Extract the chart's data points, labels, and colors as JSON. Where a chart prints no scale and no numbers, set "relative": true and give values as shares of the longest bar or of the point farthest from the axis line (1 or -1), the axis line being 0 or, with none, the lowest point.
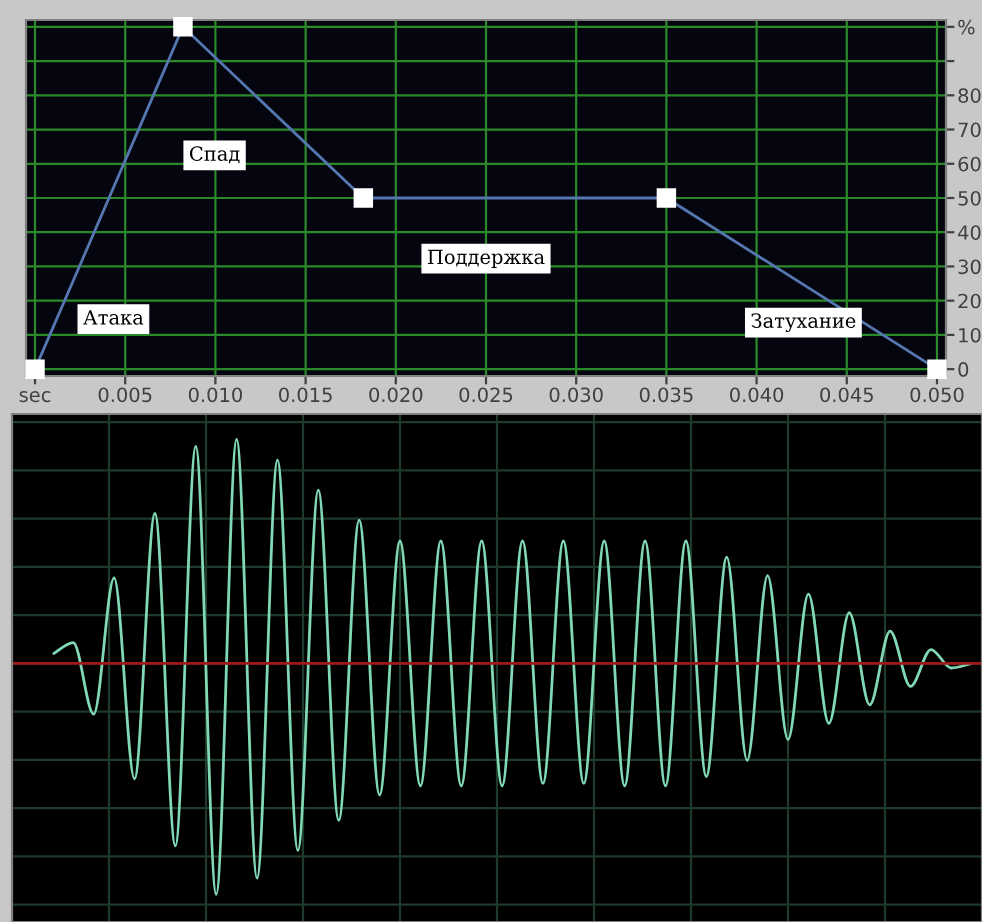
{
  "chart_data": [
    {
      "type": "line",
      "x": [
        0,
        0.0082,
        0.0182,
        0.035,
        0.05
      ],
      "series": [
        {
          "color": "#5577b0",
          "values": [
            0,
            100,
            50,
            50,
            0
          ]
        }
      ],
      "xlim": [
        -0.0005,
        0.0505
      ],
      "ylim": [
        -2,
        102
      ],
      "xticks": [
        {
          "value": 0,
          "label": "sec"
        },
        0.005,
        {
          "value": 0.01,
          "label": "0.010"
        },
        0.015,
        {
          "value": 0.02,
          "label": "0.020"
        },
        0.025,
        {
          "value": 0.03,
          "label": "0.030"
        },
        0.035,
        {
          "value": 0.04,
          "label": "0.040"
        },
        0.045,
        {
          "value": 0.05,
          "label": "0.050"
        }
      ],
      "yticks": [
        0,
        10,
        20,
        30,
        40,
        50,
        60,
        70,
        80,
        {
          "value": 90,
          "label": null
        },
        {
          "value": 100,
          "label": "%"
        }
      ],
      "grid": true,
      "marker": "square",
      "line_style": "solid",
      "annotations": [
        "Атака",
        "Спад",
        "Поддержка",
        "Затухание"
      ]
    },
    {
      "type": "line",
      "relative": true,
      "grid": true,
      "categories": [
        null,
        null,
        null,
        null,
        null,
        null,
        null,
        null,
        null,
        null,
        null,
        null,
        null,
        null,
        null,
        null,
        null,
        null,
        null,
        null,
        null,
        null,
        null,
        null,
        null,
        null,
        null,
        null,
        null,
        null,
        null,
        null,
        null,
        null,
        null,
        null,
        null,
        null,
        null,
        null,
        null,
        null,
        null,
        null,
        null,
        null
      ],
      "series": [
        {
          "color": "#80d8b4",
          "values": [
            0.04,
            0.09,
            -0.22,
            0.37,
            -0.5,
            0.65,
            -0.79,
            0.94,
            -1,
            0.97,
            -0.93,
            0.88,
            -0.81,
            0.75,
            -0.68,
            0.62,
            -0.57,
            0.53,
            -0.53,
            0.53,
            -0.53,
            0.53,
            -0.53,
            0.53,
            -0.52,
            0.53,
            -0.52,
            0.53,
            -0.53,
            0.53,
            -0.53,
            0.53,
            -0.49,
            0.46,
            -0.42,
            0.38,
            -0.33,
            0.3,
            -0.26,
            0.22,
            -0.18,
            0.14,
            -0.1,
            0.06,
            -0.02,
            0.0
          ]
        }
      ],
      "ref_lines": [
        {
          "axis": "y",
          "value": 0,
          "color": "#a01818"
        }
      ]
    }
  ]
}
